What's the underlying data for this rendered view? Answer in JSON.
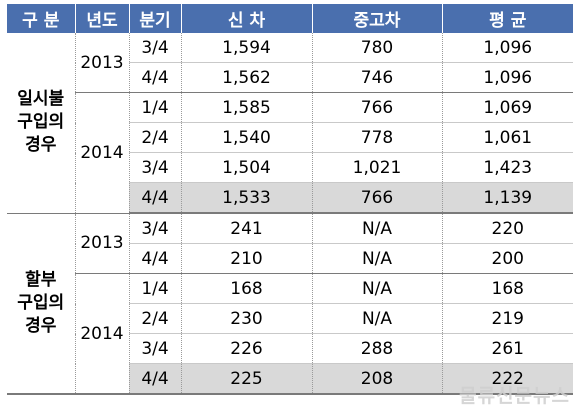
{
  "header": {
    "category": "구 분",
    "year": "년도",
    "quarter": "분기",
    "new_car": "신 차",
    "used_car": "중고차",
    "average": "평 균"
  },
  "groups": [
    {
      "category": "일시불\n구입의\n경우",
      "years": [
        {
          "year": "2013",
          "rows": [
            {
              "quarter": "3/4",
              "new": "1,594",
              "used": "780",
              "avg": "1,096"
            },
            {
              "quarter": "4/4",
              "new": "1,562",
              "used": "746",
              "avg": "1,096"
            }
          ]
        },
        {
          "year": "2014",
          "rows": [
            {
              "quarter": "1/4",
              "new": "1,585",
              "used": "766",
              "avg": "1,069"
            },
            {
              "quarter": "2/4",
              "new": "1,540",
              "used": "778",
              "avg": "1,061"
            },
            {
              "quarter": "3/4",
              "new": "1,504",
              "used": "1,021",
              "avg": "1,423"
            },
            {
              "quarter": "4/4",
              "new": "1,533",
              "used": "766",
              "avg": "1,139"
            }
          ]
        }
      ]
    },
    {
      "category": "할부\n구입의\n경우",
      "years": [
        {
          "year": "2013",
          "rows": [
            {
              "quarter": "3/4",
              "new": "241",
              "used": "N/A",
              "avg": "220"
            },
            {
              "quarter": "4/4",
              "new": "210",
              "used": "N/A",
              "avg": "200"
            }
          ]
        },
        {
          "year": "2014",
          "rows": [
            {
              "quarter": "1/4",
              "new": "168",
              "used": "N/A",
              "avg": "168"
            },
            {
              "quarter": "2/4",
              "new": "230",
              "used": "N/A",
              "avg": "219"
            },
            {
              "quarter": "3/4",
              "new": "226",
              "used": "288",
              "avg": "261"
            },
            {
              "quarter": "4/4",
              "new": "225",
              "used": "208",
              "avg": "222"
            }
          ]
        }
      ]
    }
  ],
  "watermark": "물류신문뉴스"
}
